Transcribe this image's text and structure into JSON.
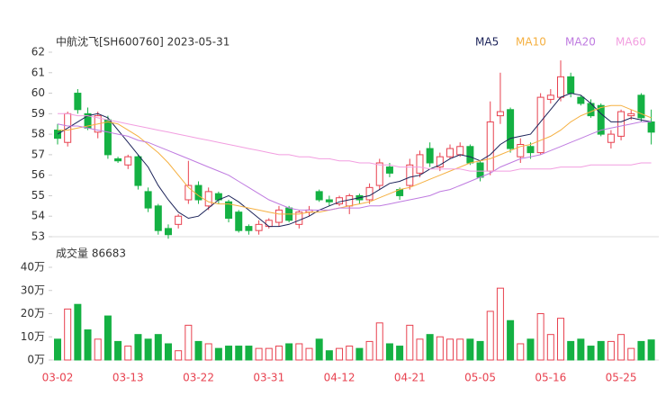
{
  "chart_data": [
    {
      "type": "candlestick",
      "title": "中航沈飞[SH600760] 2023-05-31",
      "up_color": "#e8414f",
      "down_color": "#14b143",
      "ylim": [
        53,
        62
      ],
      "yticks": [
        53,
        54,
        55,
        56,
        57,
        58,
        59,
        60,
        61,
        62
      ],
      "open": [
        58.2,
        57.6,
        60.0,
        59.0,
        58.1,
        58.7,
        56.8,
        56.5,
        56.9,
        55.2,
        54.5,
        53.4,
        53.6,
        54.8,
        55.5,
        54.5,
        55.1,
        54.7,
        54.2,
        53.5,
        53.3,
        53.5,
        53.7,
        54.4,
        53.6,
        54.2,
        55.2,
        54.8,
        54.6,
        54.5,
        55.0,
        54.8,
        55.5,
        56.4,
        55.3,
        55.5,
        56.1,
        57.3,
        56.4,
        56.9,
        57.0,
        57.4,
        56.6,
        56.2,
        58.9,
        59.2,
        56.9,
        57.4,
        57.1,
        59.7,
        59.8,
        60.8,
        59.8,
        59.5,
        59.4,
        57.6,
        57.9,
        58.9,
        59.9,
        58.6
      ],
      "close": [
        57.8,
        59.0,
        59.2,
        58.3,
        58.9,
        57.0,
        56.7,
        56.9,
        55.5,
        54.4,
        53.3,
        53.1,
        54.0,
        55.5,
        54.8,
        55.2,
        54.8,
        53.9,
        53.3,
        53.3,
        53.6,
        53.8,
        54.3,
        53.8,
        54.2,
        54.3,
        54.8,
        54.7,
        54.9,
        55.0,
        54.8,
        55.4,
        56.6,
        56.1,
        55.0,
        56.5,
        57.0,
        56.6,
        56.9,
        57.3,
        57.4,
        56.6,
        55.9,
        58.6,
        59.1,
        57.3,
        57.5,
        57.1,
        59.8,
        59.9,
        60.8,
        60.0,
        59.5,
        58.9,
        58.0,
        58.0,
        59.1,
        59.0,
        58.8,
        58.1
      ],
      "high": [
        58.5,
        59.1,
        60.2,
        59.3,
        59.1,
        58.9,
        56.9,
        57.0,
        57.0,
        55.4,
        54.6,
        53.6,
        54.1,
        56.7,
        55.7,
        55.4,
        55.2,
        54.8,
        54.3,
        53.6,
        53.8,
        53.9,
        54.5,
        54.5,
        54.3,
        54.5,
        55.3,
        55.0,
        55.0,
        55.1,
        55.1,
        55.6,
        56.8,
        56.6,
        55.4,
        56.8,
        57.2,
        57.6,
        57.1,
        57.5,
        57.6,
        57.5,
        56.7,
        59.6,
        61.0,
        59.3,
        57.8,
        57.6,
        60.0,
        60.2,
        61.6,
        61.0,
        59.9,
        59.7,
        59.5,
        58.2,
        59.2,
        59.2,
        60.0,
        59.2
      ],
      "low": [
        57.5,
        57.4,
        59.0,
        58.2,
        57.8,
        56.8,
        56.6,
        56.3,
        55.3,
        54.2,
        53.1,
        52.9,
        53.4,
        54.6,
        54.6,
        54.3,
        54.6,
        53.7,
        53.2,
        53.1,
        53.1,
        53.4,
        53.5,
        53.7,
        53.4,
        54.0,
        54.7,
        54.5,
        54.5,
        54.1,
        54.6,
        54.6,
        55.3,
        55.9,
        54.8,
        55.3,
        55.9,
        56.4,
        56.2,
        56.8,
        56.9,
        56.5,
        55.7,
        56.0,
        58.5,
        57.1,
        56.6,
        56.8,
        57.0,
        59.5,
        59.6,
        59.8,
        59.4,
        58.8,
        57.9,
        57.3,
        57.7,
        58.7,
        58.6,
        57.5
      ],
      "series": [
        {
          "name": "MA5",
          "color": "#1c2359",
          "values": [
            58.0,
            58.3,
            58.6,
            58.9,
            59.0,
            58.8,
            58.2,
            57.6,
            57.0,
            56.4,
            55.5,
            54.8,
            54.2,
            53.9,
            54.0,
            54.4,
            54.8,
            55.0,
            54.7,
            54.3,
            53.9,
            53.5,
            53.5,
            53.6,
            53.8,
            54.0,
            54.3,
            54.5,
            54.7,
            54.8,
            54.9,
            55.0,
            55.3,
            55.6,
            55.7,
            55.9,
            56.0,
            56.3,
            56.5,
            56.8,
            57.0,
            56.9,
            56.7,
            57.0,
            57.5,
            57.8,
            57.9,
            58.0,
            58.6,
            59.2,
            59.8,
            60.0,
            59.9,
            59.5,
            59.0,
            58.6,
            58.6,
            58.8,
            58.7,
            58.6
          ]
        },
        {
          "name": "MA10",
          "color": "#f5b041",
          "values": [
            58.2,
            58.2,
            58.3,
            58.4,
            58.5,
            58.6,
            58.5,
            58.2,
            57.9,
            57.5,
            57.1,
            56.6,
            56.0,
            55.4,
            55.0,
            54.7,
            54.6,
            54.6,
            54.5,
            54.4,
            54.3,
            54.2,
            54.1,
            54.1,
            54.1,
            54.2,
            54.2,
            54.3,
            54.4,
            54.5,
            54.6,
            54.7,
            54.9,
            55.1,
            55.3,
            55.4,
            55.6,
            55.8,
            56.0,
            56.2,
            56.4,
            56.6,
            56.7,
            56.8,
            57.0,
            57.2,
            57.4,
            57.5,
            57.7,
            57.9,
            58.2,
            58.6,
            58.9,
            59.1,
            59.3,
            59.4,
            59.4,
            59.2,
            59.0,
            58.8
          ]
        },
        {
          "name": "MA20",
          "color": "#bf7be0",
          "values": [
            58.5,
            58.4,
            58.4,
            58.3,
            58.2,
            58.1,
            58.0,
            57.9,
            57.7,
            57.6,
            57.4,
            57.2,
            57.0,
            56.8,
            56.6,
            56.4,
            56.2,
            56.0,
            55.7,
            55.4,
            55.1,
            54.8,
            54.6,
            54.4,
            54.3,
            54.3,
            54.3,
            54.3,
            54.4,
            54.4,
            54.4,
            54.5,
            54.5,
            54.6,
            54.7,
            54.8,
            54.9,
            55.0,
            55.2,
            55.3,
            55.5,
            55.7,
            55.9,
            56.1,
            56.4,
            56.6,
            56.8,
            56.9,
            57.0,
            57.2,
            57.4,
            57.6,
            57.8,
            58.0,
            58.2,
            58.3,
            58.4,
            58.5,
            58.6,
            58.6
          ]
        },
        {
          "name": "MA60",
          "color": "#f29ee0",
          "values": [
            59.0,
            59.0,
            58.9,
            58.9,
            58.8,
            58.7,
            58.6,
            58.5,
            58.4,
            58.3,
            58.2,
            58.1,
            58.0,
            57.9,
            57.8,
            57.7,
            57.6,
            57.5,
            57.4,
            57.3,
            57.2,
            57.1,
            57.0,
            57.0,
            56.9,
            56.9,
            56.8,
            56.8,
            56.7,
            56.7,
            56.6,
            56.6,
            56.5,
            56.5,
            56.4,
            56.4,
            56.4,
            56.3,
            56.3,
            56.3,
            56.3,
            56.2,
            56.2,
            56.2,
            56.2,
            56.2,
            56.3,
            56.3,
            56.3,
            56.3,
            56.4,
            56.4,
            56.4,
            56.5,
            56.5,
            56.5,
            56.5,
            56.5,
            56.6,
            56.6
          ]
        }
      ]
    },
    {
      "type": "bar",
      "title": "成交量 86683",
      "ylim": [
        0,
        40
      ],
      "yticks": [
        {
          "value": 0,
          "label": "0万"
        },
        {
          "value": 10,
          "label": "10万"
        },
        {
          "value": 20,
          "label": "20万"
        },
        {
          "value": 30,
          "label": "30万"
        },
        {
          "value": 40,
          "label": "40万"
        }
      ],
      "categories": [
        "03-02",
        null,
        null,
        null,
        null,
        null,
        null,
        "03-13",
        null,
        null,
        null,
        null,
        null,
        null,
        "03-22",
        null,
        null,
        null,
        null,
        null,
        null,
        "03-31",
        null,
        null,
        null,
        null,
        null,
        null,
        "04-12",
        null,
        null,
        null,
        null,
        null,
        null,
        "04-21",
        null,
        null,
        null,
        null,
        null,
        null,
        "05-05",
        null,
        null,
        null,
        null,
        null,
        null,
        "05-16",
        null,
        null,
        null,
        null,
        null,
        null,
        "05-25",
        null,
        null,
        null
      ],
      "values": [
        9,
        22,
        24,
        13,
        9,
        19,
        8,
        6,
        11,
        9,
        11,
        7,
        4,
        15,
        8,
        7,
        5,
        6,
        6,
        6,
        5,
        5,
        6,
        7,
        7,
        5,
        9,
        4,
        5,
        6,
        5,
        8,
        16,
        7,
        6,
        15,
        9,
        11,
        10,
        9,
        9,
        9,
        8,
        21,
        31,
        17,
        7,
        9,
        20,
        11,
        18,
        8,
        9,
        6,
        8,
        8,
        11,
        5,
        8,
        8.6683
      ]
    }
  ]
}
